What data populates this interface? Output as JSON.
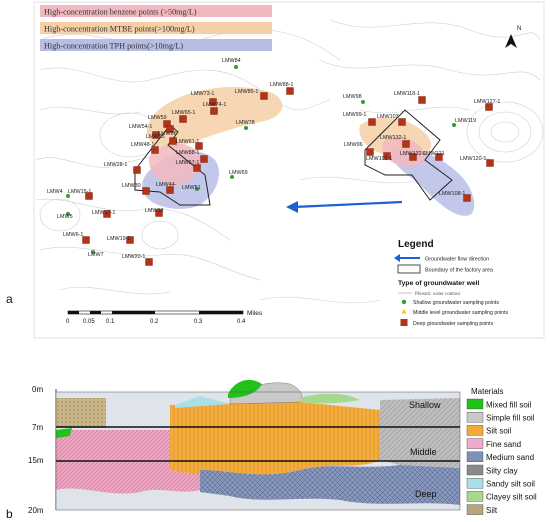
{
  "figure": {
    "panel_a_label": "a",
    "panel_b_label": "b"
  },
  "map": {
    "highlight_legend": [
      {
        "label": "High-concentration benzene points  (>50mg/L)",
        "color": "#f2b8c0"
      },
      {
        "label": "High-concentration MTBE points(>100mg/L)",
        "color": "#f6cfa6"
      },
      {
        "label": "High-concentration TPH points(>10mg/L)",
        "color": "#b9bde6"
      }
    ],
    "north_label": "N",
    "wells": [
      {
        "name": "LMW84",
        "type": "shallow"
      },
      {
        "name": "LMW73-1",
        "type": "deep"
      },
      {
        "name": "LMW88-1",
        "type": "deep"
      },
      {
        "name": "LMW85-1",
        "type": "deep"
      },
      {
        "name": "LMW74-1",
        "type": "deep"
      },
      {
        "name": "LMW59",
        "type": "deep"
      },
      {
        "name": "LMW65-1",
        "type": "deep"
      },
      {
        "name": "LMW54-1",
        "type": "deep"
      },
      {
        "name": "LMW66",
        "type": "deep"
      },
      {
        "name": "LMW55",
        "type": "deep"
      },
      {
        "name": "LMW61-1",
        "type": "deep"
      },
      {
        "name": "LMW48-1",
        "type": "deep"
      },
      {
        "name": "LMW88-1",
        "type": "deep"
      },
      {
        "name": "LMW78",
        "type": "shallow"
      },
      {
        "name": "LMW28-1",
        "type": "deep"
      },
      {
        "name": "LMW57-1",
        "type": "deep"
      },
      {
        "name": "LMW30",
        "type": "deep"
      },
      {
        "name": "LMW44-",
        "type": "deep"
      },
      {
        "name": "LMW51",
        "type": "shallow"
      },
      {
        "name": "LMW69",
        "type": "shallow"
      },
      {
        "name": "LMW4",
        "type": "shallow"
      },
      {
        "name": "LMW15-1",
        "type": "deep"
      },
      {
        "name": "LMW32",
        "type": "deep"
      },
      {
        "name": "LMW5",
        "type": "shallow"
      },
      {
        "name": "LMW17-1",
        "type": "deep"
      },
      {
        "name": "LMW6-1",
        "type": "deep"
      },
      {
        "name": "LMW19-1",
        "type": "deep"
      },
      {
        "name": "LMW7",
        "type": "shallow"
      },
      {
        "name": "LMW20-1",
        "type": "deep"
      },
      {
        "name": "LMW98",
        "type": "shallow"
      },
      {
        "name": "LMW118-1",
        "type": "deep"
      },
      {
        "name": "LMW127-1",
        "type": "deep"
      },
      {
        "name": "LMW99-1",
        "type": "deep"
      },
      {
        "name": "LMW103",
        "type": "deep"
      },
      {
        "name": "LMW119",
        "type": "shallow"
      },
      {
        "name": "LMW132-1",
        "type": "deep"
      },
      {
        "name": "LMW96",
        "type": "deep"
      },
      {
        "name": "LMW101-1",
        "type": "deep"
      },
      {
        "name": "LMW132-1",
        "type": "deep"
      },
      {
        "name": "LMW121",
        "type": "deep"
      },
      {
        "name": "LMW120-1",
        "type": "deep"
      },
      {
        "name": "LMW108-1",
        "type": "deep"
      }
    ],
    "legend": {
      "title": "Legend",
      "flow": "Groundwater flow direction",
      "boundary": "Boundary of the factory area",
      "well_type_title": "Type of groundwater well",
      "contour": "Phreatic water contour",
      "shallow": "Shallow groundwater sampling points",
      "middle": "Middle level groundwater sampling points",
      "deep": "Deep groundwater sampling points"
    },
    "scale": {
      "unit": "Miles",
      "ticks": [
        "0",
        "0.05",
        "0.1",
        "0.2",
        "0.3",
        "0.4"
      ]
    },
    "colors": {
      "flow_arrow": "#1f5fd6",
      "shallow": "#2e9e3a",
      "middle": "#f0d000",
      "deep": "#b23318"
    }
  },
  "section": {
    "depth_labels": [
      "0m",
      "7m",
      "15m",
      "20m"
    ],
    "zone_labels": [
      "Shallow",
      "Middle",
      "Deep"
    ],
    "materials_title": "Materials",
    "materials": [
      {
        "label": "Mixed fill soil",
        "color": "#22c21c"
      },
      {
        "label": "Simple fill soil",
        "color": "#c9c9c9"
      },
      {
        "label": "Silt soil",
        "color": "#f4a93a"
      },
      {
        "label": "Fine sand",
        "color": "#f2a9c8"
      },
      {
        "label": "Medium sand",
        "color": "#7f8fb5"
      },
      {
        "label": "Silty clay",
        "color": "#8a8a8a"
      },
      {
        "label": "Sandy silt soil",
        "color": "#a9dfe6"
      },
      {
        "label": "Clayey silt soil",
        "color": "#a6d98f"
      },
      {
        "label": "Silt",
        "color": "#b7a67d"
      }
    ]
  }
}
